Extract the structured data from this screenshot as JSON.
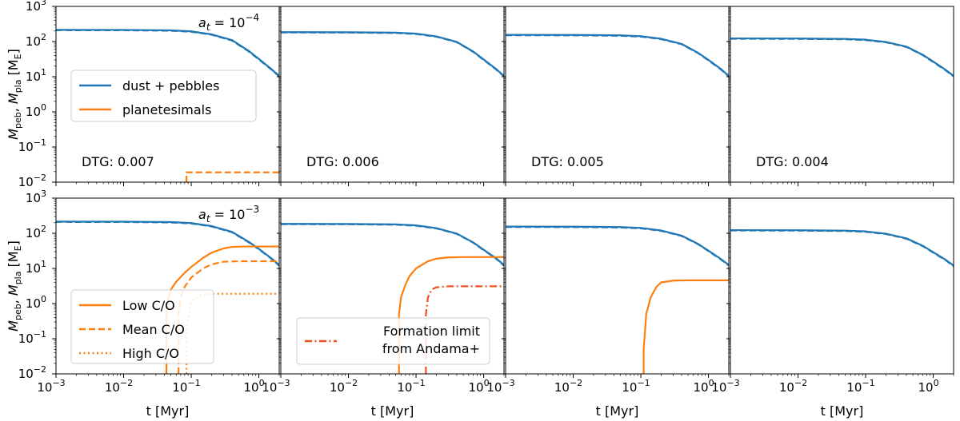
{
  "chart_data": {
    "type": "line",
    "layout": "2 rows x 4 columns, shared log axes",
    "xlabel_parts": [
      "t [Myr]"
    ],
    "ylabel_parts": {
      "main1": "M",
      "sub1": "peb",
      "sep": ", ",
      "main2": "M",
      "sub2": "pla",
      "unit_open": " [M",
      "unit_sub": "E",
      "unit_close": "]"
    },
    "xscale": "log",
    "yscale": "log",
    "xlim": [
      0.001,
      2
    ],
    "ylim": [
      0.01,
      1000
    ],
    "xtick_labels": [
      {
        "value": 0.001,
        "base": "10",
        "exp": "−3"
      },
      {
        "value": 0.01,
        "base": "10",
        "exp": "−2"
      },
      {
        "value": 0.1,
        "base": "10",
        "exp": "−1"
      },
      {
        "value": 1,
        "base": "10",
        "exp": "0"
      }
    ],
    "ytick_labels": [
      {
        "value": 0.01,
        "base": "10",
        "exp": "−2"
      },
      {
        "value": 0.1,
        "base": "10",
        "exp": "−1"
      },
      {
        "value": 1,
        "base": "10",
        "exp": "0"
      },
      {
        "value": 10,
        "base": "10",
        "exp": "1"
      },
      {
        "value": 100,
        "base": "10",
        "exp": "2"
      },
      {
        "value": 1000,
        "base": "10",
        "exp": "3"
      }
    ],
    "colors": {
      "pebbles": "#1f77b4",
      "planetesimals": "#ff7f0e",
      "limit": "#f0501e"
    },
    "row_labels": [
      {
        "sym": "a",
        "sub": "t",
        "eq": " = 10",
        "exp": "−4"
      },
      {
        "sym": "a",
        "sub": "t",
        "eq": " = 10",
        "exp": "−3"
      }
    ],
    "legend_top": [
      {
        "label": "dust + pebbles",
        "color": "#1f77b4",
        "dash": "solid"
      },
      {
        "label": "planetesimals",
        "color": "#ff7f0e",
        "dash": "solid"
      }
    ],
    "legend_bottom_co": [
      {
        "label": "Low C/O",
        "color": "#ff7f0e",
        "dash": "solid"
      },
      {
        "label": "Mean C/O",
        "color": "#ff7f0e",
        "dash": "dashed"
      },
      {
        "label": "High C/O",
        "color": "#ff7f0e",
        "dash": "dotted"
      }
    ],
    "legend_bottom_limit": {
      "lines": [
        "Formation limit",
        "from Andama+"
      ],
      "color": "#f0501e",
      "dash": "dashdot"
    },
    "panels": [
      {
        "row": 0,
        "col": 0,
        "dtg": "DTG: 0.007",
        "series": [
          {
            "name": "dust + pebbles, Low C/O",
            "color": "#1f77b4",
            "dash": "solid",
            "x": [
              0.001,
              0.01,
              0.05,
              0.1,
              0.2,
              0.4,
              0.7,
              1.0,
              1.5,
              2.0
            ],
            "y": [
              215,
              214,
              208,
              195,
              160,
              110,
              55,
              32,
              17,
              10.5
            ]
          },
          {
            "name": "dust + pebbles, Mean C/O",
            "color": "#1f77b4",
            "dash": "dashed",
            "x": [
              0.001,
              0.01,
              0.05,
              0.1,
              0.2,
              0.4,
              0.7,
              1.0,
              1.5,
              2.0
            ],
            "y": [
              210,
              209,
              203,
              190,
              156,
              107,
              53,
              31,
              16.5,
              10.2
            ]
          },
          {
            "name": "planetesimals, Mean C/O",
            "color": "#ff7f0e",
            "dash": "dashed",
            "x": [
              0.085,
              0.085,
              0.2,
              2.0
            ],
            "y": [
              0.01,
              0.019,
              0.019,
              0.019
            ]
          }
        ]
      },
      {
        "row": 0,
        "col": 1,
        "dtg": "DTG: 0.006",
        "series": [
          {
            "name": "dust + pebbles, Low C/O",
            "color": "#1f77b4",
            "dash": "solid",
            "x": [
              0.001,
              0.01,
              0.05,
              0.1,
              0.2,
              0.4,
              0.7,
              1.0,
              1.5,
              2.0
            ],
            "y": [
              185,
              184,
              179,
              168,
              140,
              98,
              52,
              31,
              17,
              10.5
            ]
          },
          {
            "name": "dust + pebbles, Mean C/O",
            "color": "#1f77b4",
            "dash": "dashed",
            "x": [
              0.001,
              0.01,
              0.05,
              0.1,
              0.2,
              0.4,
              0.7,
              1.0,
              1.5,
              2.0
            ],
            "y": [
              181,
              180,
              175,
              164,
              137,
              96,
              51,
              30,
              16.5,
              10.2
            ]
          }
        ]
      },
      {
        "row": 0,
        "col": 2,
        "dtg": "DTG: 0.005",
        "series": [
          {
            "name": "dust + pebbles, Low C/O",
            "color": "#1f77b4",
            "dash": "solid",
            "x": [
              0.001,
              0.01,
              0.05,
              0.1,
              0.2,
              0.4,
              0.7,
              1.0,
              1.5,
              2.0
            ],
            "y": [
              155,
              154,
              150,
              142,
              120,
              86,
              48,
              30,
              17,
              10.5
            ]
          },
          {
            "name": "dust + pebbles, Mean C/O",
            "color": "#1f77b4",
            "dash": "dashed",
            "x": [
              0.001,
              0.01,
              0.05,
              0.1,
              0.2,
              0.4,
              0.7,
              1.0,
              1.5,
              2.0
            ],
            "y": [
              151,
              150,
              146,
              138,
              117,
              84,
              47,
              29,
              16.5,
              10.2
            ]
          }
        ]
      },
      {
        "row": 0,
        "col": 3,
        "dtg": "DTG: 0.004",
        "series": [
          {
            "name": "dust + pebbles, Low C/O",
            "color": "#1f77b4",
            "dash": "solid",
            "x": [
              0.001,
              0.01,
              0.05,
              0.1,
              0.2,
              0.4,
              0.7,
              1.0,
              1.5,
              2.0
            ],
            "y": [
              123,
              122,
              119,
              113,
              97,
              72,
              42,
              27,
              16,
              10.5
            ]
          },
          {
            "name": "dust + pebbles, Mean C/O",
            "color": "#1f77b4",
            "dash": "dashed",
            "x": [
              0.001,
              0.01,
              0.05,
              0.1,
              0.2,
              0.4,
              0.7,
              1.0,
              1.5,
              2.0
            ],
            "y": [
              120,
              119,
              116,
              110,
              95,
              70,
              41,
              26,
              15.5,
              10.2
            ]
          }
        ]
      },
      {
        "row": 1,
        "col": 0,
        "dtg": "",
        "series": [
          {
            "name": "dust + pebbles, Low C/O",
            "color": "#1f77b4",
            "dash": "solid",
            "x": [
              0.001,
              0.01,
              0.05,
              0.1,
              0.2,
              0.4,
              0.7,
              1.0,
              1.5,
              2.0
            ],
            "y": [
              215,
              214,
              208,
              195,
              160,
              110,
              58,
              36,
              20,
              12.5
            ]
          },
          {
            "name": "dust + pebbles, Mean C/O",
            "color": "#1f77b4",
            "dash": "dashed",
            "x": [
              0.001,
              0.01,
              0.05,
              0.1,
              0.2,
              0.4,
              0.7,
              1.0,
              1.5,
              2.0
            ],
            "y": [
              210,
              209,
              203,
              190,
              156,
              107,
              56,
              35,
              19.5,
              12
            ]
          },
          {
            "name": "planetesimals, Low C/O",
            "color": "#ff7f0e",
            "dash": "solid",
            "x": [
              0.043,
              0.043,
              0.046,
              0.05,
              0.06,
              0.08,
              0.1,
              0.15,
              0.2,
              0.3,
              0.4,
              0.6,
              1.0,
              2.0
            ],
            "y": [
              0.01,
              0.5,
              1.5,
              2.5,
              4.2,
              7.5,
              11,
              20,
              28,
              37,
              41,
              42,
              42,
              42
            ]
          },
          {
            "name": "planetesimals, Mean C/O",
            "color": "#ff7f0e",
            "dash": "dashed",
            "x": [
              0.065,
              0.065,
              0.07,
              0.08,
              0.1,
              0.15,
              0.2,
              0.3,
              0.5,
              1.0,
              2.0
            ],
            "y": [
              0.01,
              0.5,
              1.5,
              3,
              5.5,
              10,
              13,
              15.5,
              16,
              16,
              16
            ]
          },
          {
            "name": "planetesimals, High C/O",
            "color": "#ff7f0e",
            "dash": "dotted",
            "x": [
              0.085,
              0.085,
              0.1,
              0.15,
              0.2,
              0.5,
              1.0,
              2.0
            ],
            "y": [
              0.01,
              0.2,
              1.2,
              1.8,
              1.9,
              1.9,
              1.9,
              1.9
            ]
          }
        ]
      },
      {
        "row": 1,
        "col": 1,
        "dtg": "",
        "series": [
          {
            "name": "dust + pebbles, Low C/O",
            "color": "#1f77b4",
            "dash": "solid",
            "x": [
              0.001,
              0.01,
              0.05,
              0.1,
              0.2,
              0.4,
              0.7,
              1.0,
              1.5,
              2.0
            ],
            "y": [
              185,
              184,
              179,
              168,
              140,
              98,
              55,
              34,
              20,
              12.5
            ]
          },
          {
            "name": "dust + pebbles, Mean C/O",
            "color": "#1f77b4",
            "dash": "dashed",
            "x": [
              0.001,
              0.01,
              0.05,
              0.1,
              0.2,
              0.4,
              0.7,
              1.0,
              1.5,
              2.0
            ],
            "y": [
              181,
              180,
              175,
              164,
              137,
              96,
              54,
              33,
              19.5,
              12
            ]
          },
          {
            "name": "planetesimals, Low C/O",
            "color": "#ff7f0e",
            "dash": "solid",
            "x": [
              0.056,
              0.056,
              0.06,
              0.07,
              0.08,
              0.1,
              0.15,
              0.2,
              0.3,
              0.5,
              1.0,
              2.0
            ],
            "y": [
              0.01,
              0.5,
              1.5,
              3.5,
              6,
              10,
              16,
              19,
              20.5,
              21,
              21,
              21
            ]
          },
          {
            "name": "Formation limit from Andama+",
            "color": "#f0501e",
            "dash": "dashdot",
            "x": [
              0.14,
              0.14,
              0.15,
              0.17,
              0.2,
              0.3,
              0.5,
              1.0,
              2.0
            ],
            "y": [
              0.01,
              0.5,
              1.5,
              2.5,
              2.9,
              3.1,
              3.1,
              3.1,
              3.1
            ]
          }
        ]
      },
      {
        "row": 1,
        "col": 2,
        "dtg": "",
        "series": [
          {
            "name": "dust + pebbles, Low C/O",
            "color": "#1f77b4",
            "dash": "solid",
            "x": [
              0.001,
              0.01,
              0.05,
              0.1,
              0.2,
              0.4,
              0.7,
              1.0,
              1.5,
              2.0
            ],
            "y": [
              155,
              154,
              150,
              142,
              120,
              86,
              50,
              32,
              19,
              12.5
            ]
          },
          {
            "name": "dust + pebbles, Mean C/O",
            "color": "#1f77b4",
            "dash": "dashed",
            "x": [
              0.001,
              0.01,
              0.05,
              0.1,
              0.2,
              0.4,
              0.7,
              1.0,
              1.5,
              2.0
            ],
            "y": [
              151,
              150,
              146,
              138,
              117,
              84,
              49,
              31,
              18.5,
              12
            ]
          },
          {
            "name": "planetesimals, Low C/O",
            "color": "#ff7f0e",
            "dash": "solid",
            "x": [
              0.11,
              0.11,
              0.115,
              0.12,
              0.14,
              0.17,
              0.2,
              0.3,
              0.5,
              1.0,
              2.0
            ],
            "y": [
              0.01,
              0.05,
              0.15,
              0.5,
              1.5,
              3,
              4,
              4.5,
              4.6,
              4.6,
              4.6
            ]
          }
        ]
      },
      {
        "row": 1,
        "col": 3,
        "dtg": "",
        "series": [
          {
            "name": "dust + pebbles, Low C/O",
            "color": "#1f77b4",
            "dash": "solid",
            "x": [
              0.001,
              0.01,
              0.05,
              0.1,
              0.2,
              0.4,
              0.7,
              1.0,
              1.5,
              2.0
            ],
            "y": [
              123,
              122,
              119,
              113,
              97,
              72,
              44,
              29,
              18,
              12
            ]
          },
          {
            "name": "dust + pebbles, Mean C/O",
            "color": "#1f77b4",
            "dash": "dashed",
            "x": [
              0.001,
              0.01,
              0.05,
              0.1,
              0.2,
              0.4,
              0.7,
              1.0,
              1.5,
              2.0
            ],
            "y": [
              120,
              119,
              116,
              110,
              95,
              70,
              43,
              28,
              17.5,
              11.5
            ]
          }
        ]
      }
    ]
  }
}
